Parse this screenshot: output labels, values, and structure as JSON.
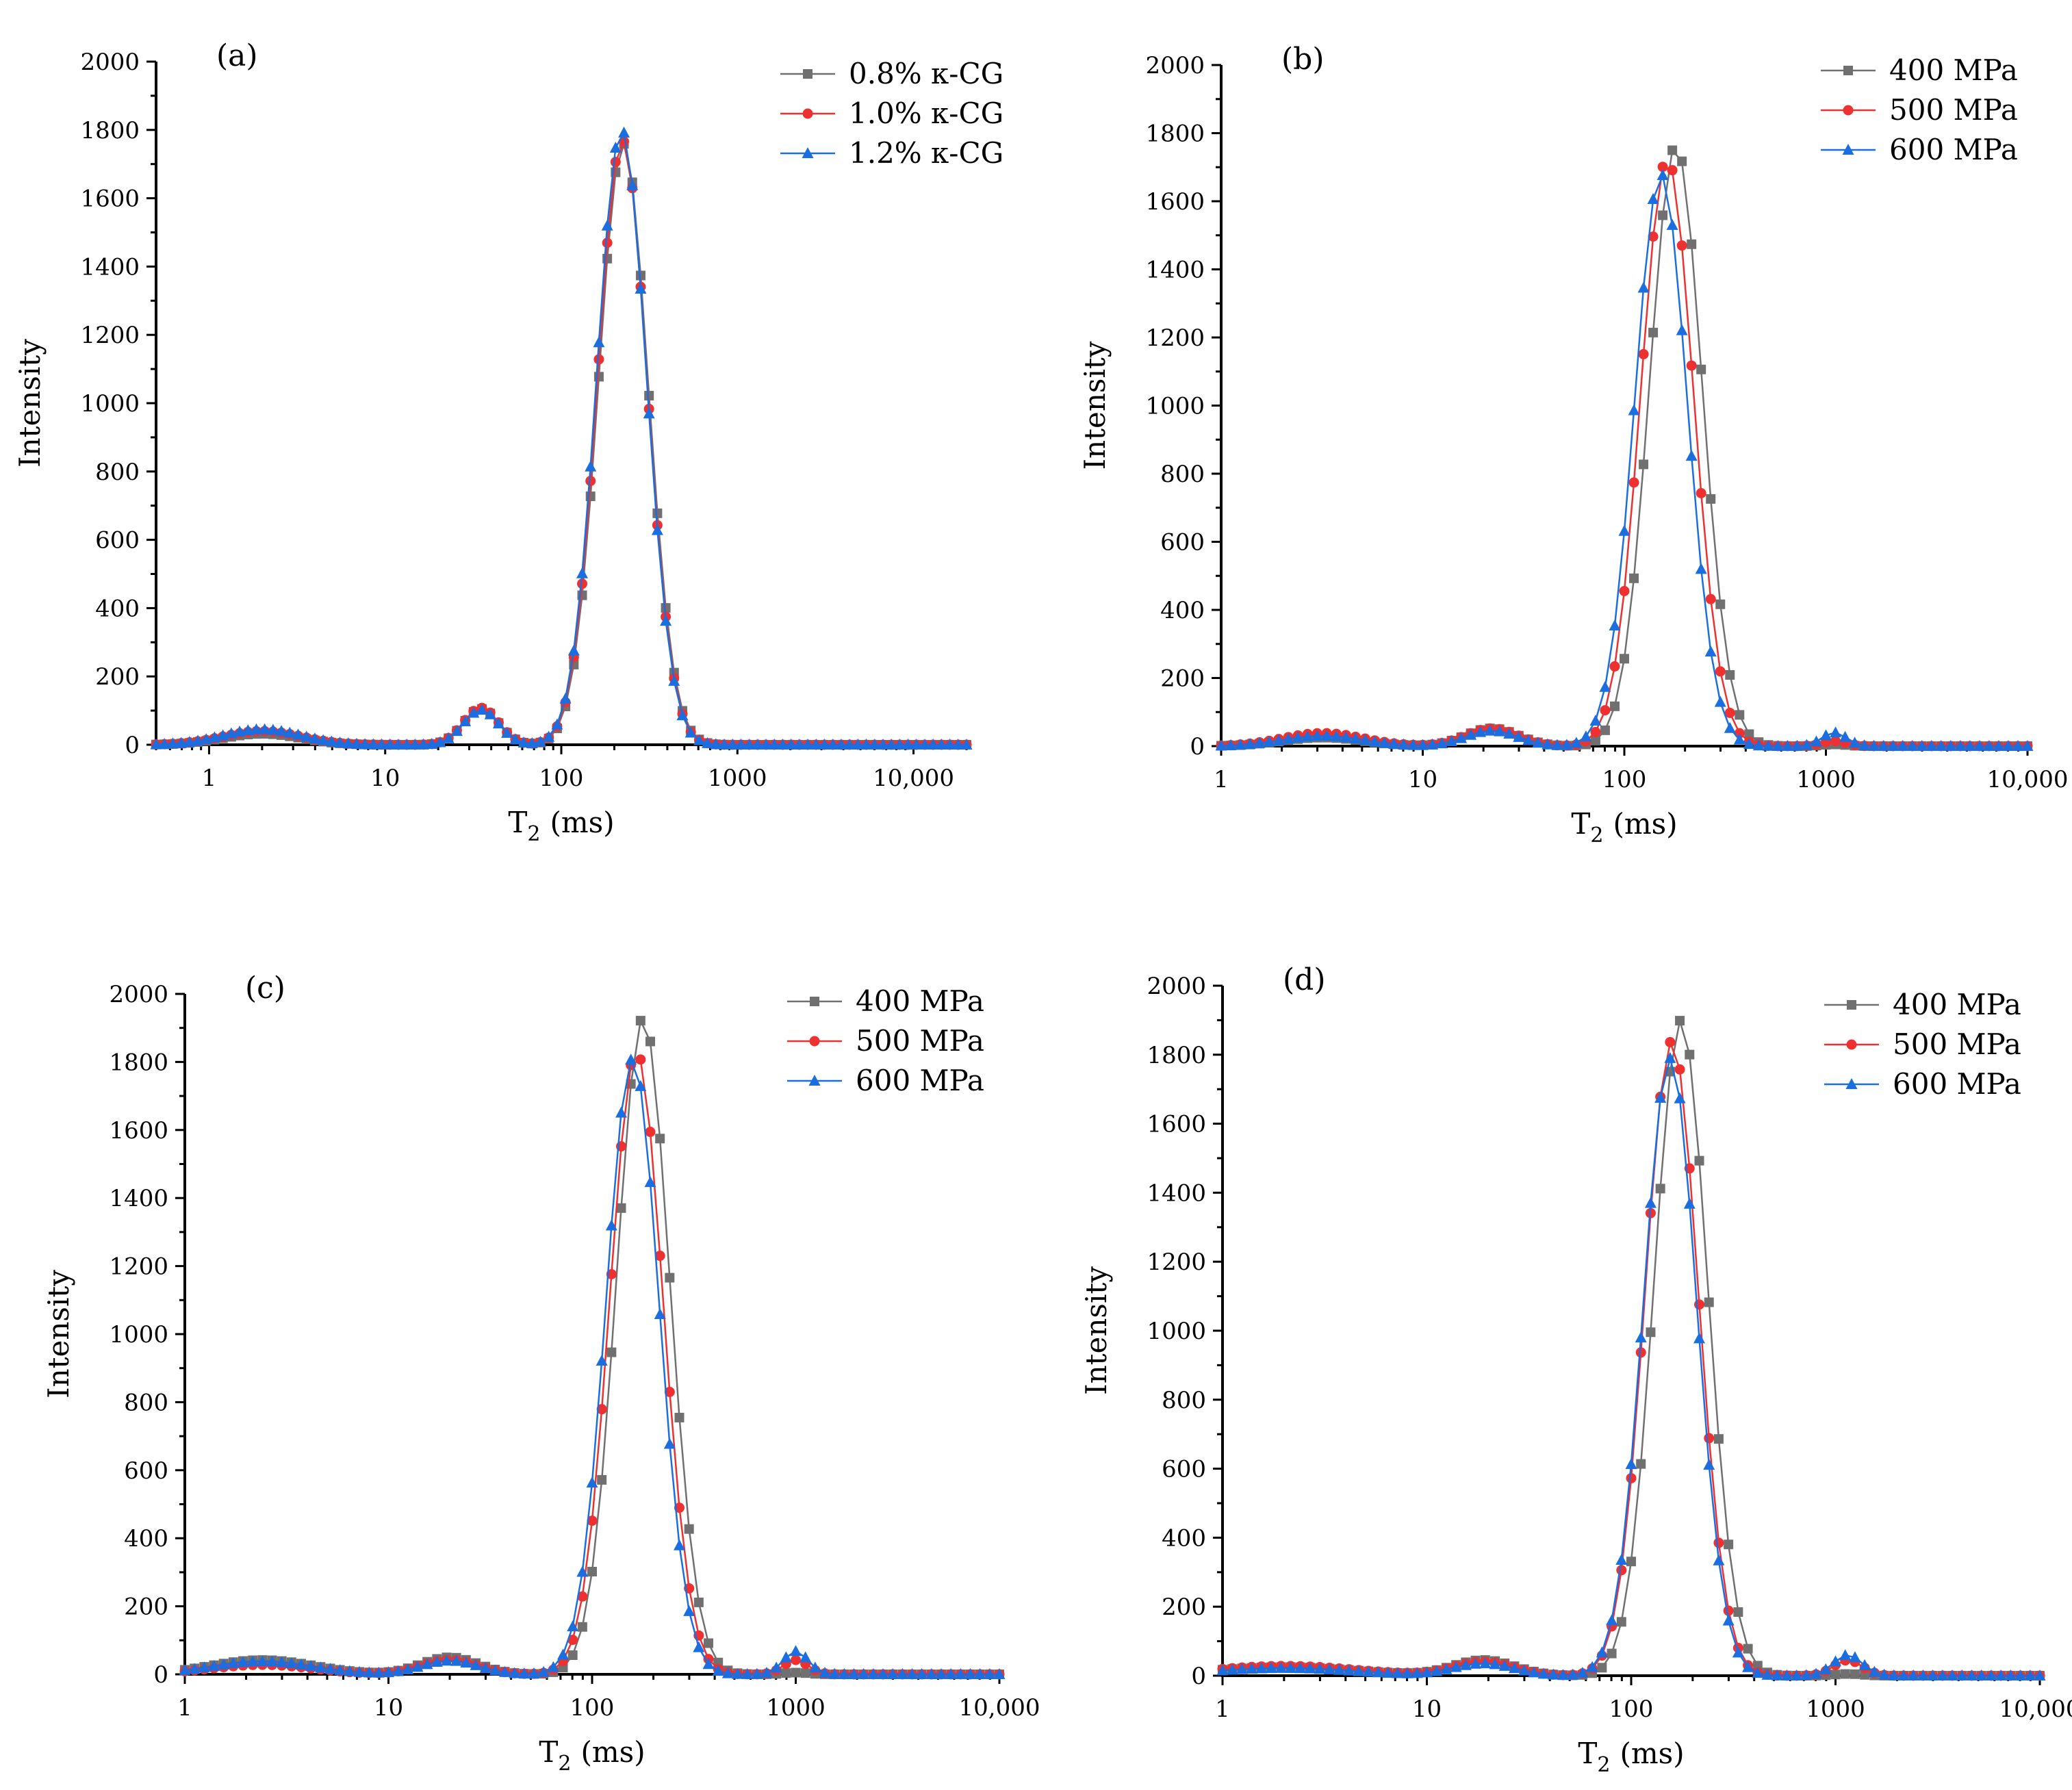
{
  "figure": {
    "description_free": true
  },
  "chart_data": [
    {
      "type": "line",
      "panel_label": "(a)",
      "xlabel": "T",
      "xlabel_sub": "2",
      "xlabel_unit": "(ms)",
      "ylabel": "Intensity",
      "xscale": "log",
      "xlim": [
        0.5,
        20000
      ],
      "ylim": [
        0,
        2000
      ],
      "x_ticks": [
        1,
        10,
        100,
        1000,
        10000
      ],
      "x_tick_labels": [
        "1",
        "10",
        "100",
        "1000",
        "10,000"
      ],
      "y_ticks": [
        0,
        200,
        400,
        600,
        800,
        1000,
        1200,
        1400,
        1600,
        1800,
        2000
      ],
      "y_tick_labels": [
        "0",
        "200",
        "400",
        "600",
        "800",
        "1000",
        "1200",
        "1400",
        "1600",
        "1800",
        "2000"
      ],
      "legend_position": "top-right",
      "peaks": {
        "small_1": {
          "center": 2.0,
          "width": 0.22
        },
        "small_2": {
          "center": 35,
          "width": 0.1
        },
        "main": {
          "width": 0.14
        }
      },
      "series": [
        {
          "name": "0.8% κ-CG",
          "color": "#707070",
          "marker": "square",
          "main_center": 225,
          "main_height": 1760,
          "small_1": 32,
          "small_2": 105
        },
        {
          "name": "1.0% κ-CG",
          "color": "#ee3030",
          "marker": "circle",
          "main_center": 222,
          "main_height": 1770,
          "small_1": 40,
          "small_2": 108
        },
        {
          "name": "1.2% κ-CG",
          "color": "#1a6ee0",
          "marker": "triangle",
          "main_center": 220,
          "main_height": 1800,
          "small_1": 45,
          "small_2": 102
        }
      ]
    },
    {
      "type": "line",
      "panel_label": "(b)",
      "xlabel": "T",
      "xlabel_sub": "2",
      "xlabel_unit": "(ms)",
      "ylabel": "Intensity",
      "xscale": "log",
      "xlim": [
        1,
        10000
      ],
      "ylim": [
        0,
        2000
      ],
      "x_ticks": [
        1,
        10,
        100,
        1000,
        10000
      ],
      "x_tick_labels": [
        "1",
        "10",
        "100",
        "1000",
        "10,000"
      ],
      "y_ticks": [
        0,
        200,
        400,
        600,
        800,
        1000,
        1200,
        1400,
        1600,
        1800,
        2000
      ],
      "y_tick_labels": [
        "0",
        "200",
        "400",
        "600",
        "800",
        "1000",
        "1200",
        "1400",
        "1600",
        "1800",
        "2000"
      ],
      "legend_position": "top-right",
      "peaks": {
        "small_1": {
          "center": 3.2,
          "width": 0.2
        },
        "small_2": {
          "center": 22,
          "width": 0.13
        },
        "small_3": {
          "center": 1100,
          "width": 0.06
        },
        "main": {
          "width": 0.13
        }
      },
      "series": [
        {
          "name": "400 MPa",
          "color": "#707070",
          "marker": "square",
          "main_center": 180,
          "main_height": 1765,
          "small_1": 25,
          "small_2": 52,
          "small_3": 5
        },
        {
          "name": "500 MPa",
          "color": "#ee3030",
          "marker": "circle",
          "main_center": 163,
          "main_height": 1725,
          "small_1": 38,
          "small_2": 52,
          "small_3": 15
        },
        {
          "name": "600 MPa",
          "color": "#1a6ee0",
          "marker": "triangle",
          "main_center": 152,
          "main_height": 1680,
          "small_1": 30,
          "small_2": 45,
          "small_3": 40
        }
      ]
    },
    {
      "type": "line",
      "panel_label": "(c)",
      "xlabel": "T",
      "xlabel_sub": "2",
      "xlabel_unit": "(ms)",
      "ylabel": "Intensity",
      "xscale": "log",
      "xlim": [
        1,
        10000
      ],
      "ylim": [
        0,
        2000
      ],
      "x_ticks": [
        1,
        10,
        100,
        1000,
        10000
      ],
      "x_tick_labels": [
        "1",
        "10",
        "100",
        "1000",
        "10,000"
      ],
      "y_ticks": [
        0,
        200,
        400,
        600,
        800,
        1000,
        1200,
        1400,
        1600,
        1800,
        2000
      ],
      "y_tick_labels": [
        "0",
        "200",
        "400",
        "600",
        "800",
        "1000",
        "1200",
        "1400",
        "1600",
        "1800",
        "2000"
      ],
      "legend_position": "top-right",
      "peaks": {
        "small_1": {
          "center": 2.4,
          "width": 0.25
        },
        "small_2": {
          "center": 20,
          "width": 0.14
        },
        "small_3": {
          "center": 1000,
          "width": 0.06
        },
        "main": {
          "width": 0.13
        }
      },
      "series": [
        {
          "name": "400 MPa",
          "color": "#707070",
          "marker": "square",
          "main_center": 178,
          "main_height": 1930,
          "small_1": 42,
          "small_2": 50,
          "small_3": 5
        },
        {
          "name": "500 MPa",
          "color": "#ee3030",
          "marker": "circle",
          "main_center": 165,
          "main_height": 1830,
          "small_1": 28,
          "small_2": 42,
          "small_3": 42
        },
        {
          "name": "600 MPa",
          "color": "#1a6ee0",
          "marker": "triangle",
          "main_center": 158,
          "main_height": 1810,
          "small_1": 38,
          "small_2": 40,
          "small_3": 68
        }
      ]
    },
    {
      "type": "line",
      "panel_label": "(d)",
      "xlabel": "T",
      "xlabel_sub": "2",
      "xlabel_unit": "(ms)",
      "ylabel": "Intensity",
      "xscale": "log",
      "xlim": [
        1,
        10000
      ],
      "ylim": [
        0,
        2000
      ],
      "x_ticks": [
        1,
        10,
        100,
        1000,
        10000
      ],
      "x_tick_labels": [
        "1",
        "10",
        "100",
        "1000",
        "10,000"
      ],
      "y_ticks": [
        0,
        200,
        400,
        600,
        800,
        1000,
        1200,
        1400,
        1600,
        1800,
        2000
      ],
      "y_tick_labels": [
        "0",
        "200",
        "400",
        "600",
        "800",
        "1000",
        "1200",
        "1400",
        "1600",
        "1800",
        "2000"
      ],
      "legend_position": "top-right",
      "peaks": {
        "small_1": {
          "center": 2.0,
          "width": 0.35
        },
        "small_2": {
          "center": 19,
          "width": 0.15
        },
        "small_3": {
          "center": 1150,
          "width": 0.07
        },
        "main": {
          "width": 0.13
        }
      },
      "series": [
        {
          "name": "400 MPa",
          "color": "#707070",
          "marker": "square",
          "main_center": 175,
          "main_height": 1900,
          "small_1": 25,
          "small_2": 45,
          "small_3": 5
        },
        {
          "name": "500 MPa",
          "color": "#ee3030",
          "marker": "circle",
          "main_center": 158,
          "main_height": 1840,
          "small_1": 28,
          "small_2": 40,
          "small_3": 45
        },
        {
          "name": "600 MPa",
          "color": "#1a6ee0",
          "marker": "triangle",
          "main_center": 155,
          "main_height": 1790,
          "small_1": 22,
          "small_2": 35,
          "small_3": 60
        }
      ]
    }
  ]
}
